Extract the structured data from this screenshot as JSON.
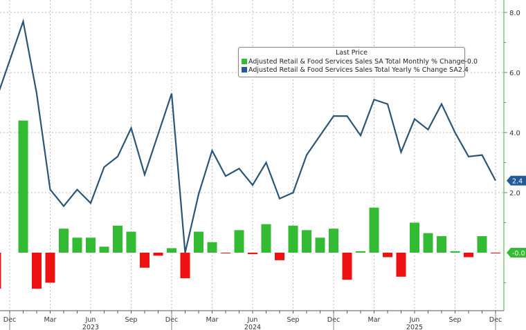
{
  "legend": {
    "title": "Last Price",
    "items": [
      {
        "label": "Adjusted Retail & Food Services Sales SA Total Monthly % Change",
        "value": "-0.0",
        "color": "#33bb33"
      },
      {
        "label": "Adjusted Retail & Food Services Sales Total Yearly % Change SA",
        "value": "2.4",
        "color": "#1f5c99"
      }
    ]
  },
  "axis": {
    "y_ticks": [
      "8.0",
      "6.0",
      "4.0",
      "2.0"
    ],
    "x_ticks": [
      "Dec",
      "Mar",
      "Jun",
      "Sep",
      "Dec",
      "Mar",
      "Jun",
      "Sep",
      "Dec",
      "Mar",
      "Jun",
      "Sep",
      "Dec"
    ],
    "years": [
      "2023",
      "2024",
      "2025"
    ],
    "last_yearly_badge": "2.4",
    "last_monthly_badge": "-0.0"
  },
  "chart_data": {
    "type": "bar+line",
    "title": "",
    "xlabel": "",
    "ylabel": "",
    "ylim": [
      -2.0,
      8.4
    ],
    "x": [
      "2022-10",
      "2022-11",
      "2022-12",
      "2023-01",
      "2023-02",
      "2023-03",
      "2023-04",
      "2023-05",
      "2023-06",
      "2023-07",
      "2023-08",
      "2023-09",
      "2023-10",
      "2023-11",
      "2023-12",
      "2024-01",
      "2024-02",
      "2024-03",
      "2024-04",
      "2024-05",
      "2024-06",
      "2024-07",
      "2024-08",
      "2024-09",
      "2024-10",
      "2024-11",
      "2024-12",
      "2025-01",
      "2025-02",
      "2025-03",
      "2025-04",
      "2025-05",
      "2025-06",
      "2025-07",
      "2025-08",
      "2025-09",
      "2025-10",
      "2025-11",
      "2025-12"
    ],
    "series": [
      {
        "name": "Adjusted Retail & Food Services Sales SA Total Monthly % Change",
        "type": "bar",
        "color_pos": "#33bb33",
        "color_neg": "#ee1111",
        "values": [
          -1.4,
          -1.2,
          null,
          4.4,
          -1.2,
          -1.0,
          0.8,
          0.5,
          0.5,
          0.2,
          0.9,
          0.7,
          -0.5,
          -0.1,
          0.15,
          -0.85,
          0.7,
          0.35,
          -0.02,
          0.75,
          -0.05,
          0.95,
          -0.25,
          0.9,
          0.75,
          0.5,
          0.8,
          -0.9,
          0.05,
          1.5,
          -0.15,
          -0.8,
          1.0,
          0.65,
          0.55,
          0.05,
          -0.15,
          0.55,
          -0.02
        ]
      },
      {
        "name": "Adjusted Retail & Food Services Sales Total Yearly % Change SA",
        "type": "line",
        "color": "#2b5577",
        "values": [
          5.5,
          5.1,
          null,
          7.7,
          5.3,
          2.1,
          1.55,
          2.1,
          1.65,
          2.85,
          3.2,
          4.15,
          2.6,
          3.95,
          5.3,
          0.0,
          1.95,
          3.4,
          2.55,
          2.8,
          2.25,
          3.0,
          1.8,
          2.0,
          3.25,
          3.9,
          4.55,
          4.55,
          3.9,
          5.1,
          4.95,
          3.35,
          4.45,
          4.1,
          4.95,
          4.0,
          3.2,
          3.25,
          2.4
        ]
      }
    ],
    "grid": true,
    "legend_position": "top-right"
  }
}
